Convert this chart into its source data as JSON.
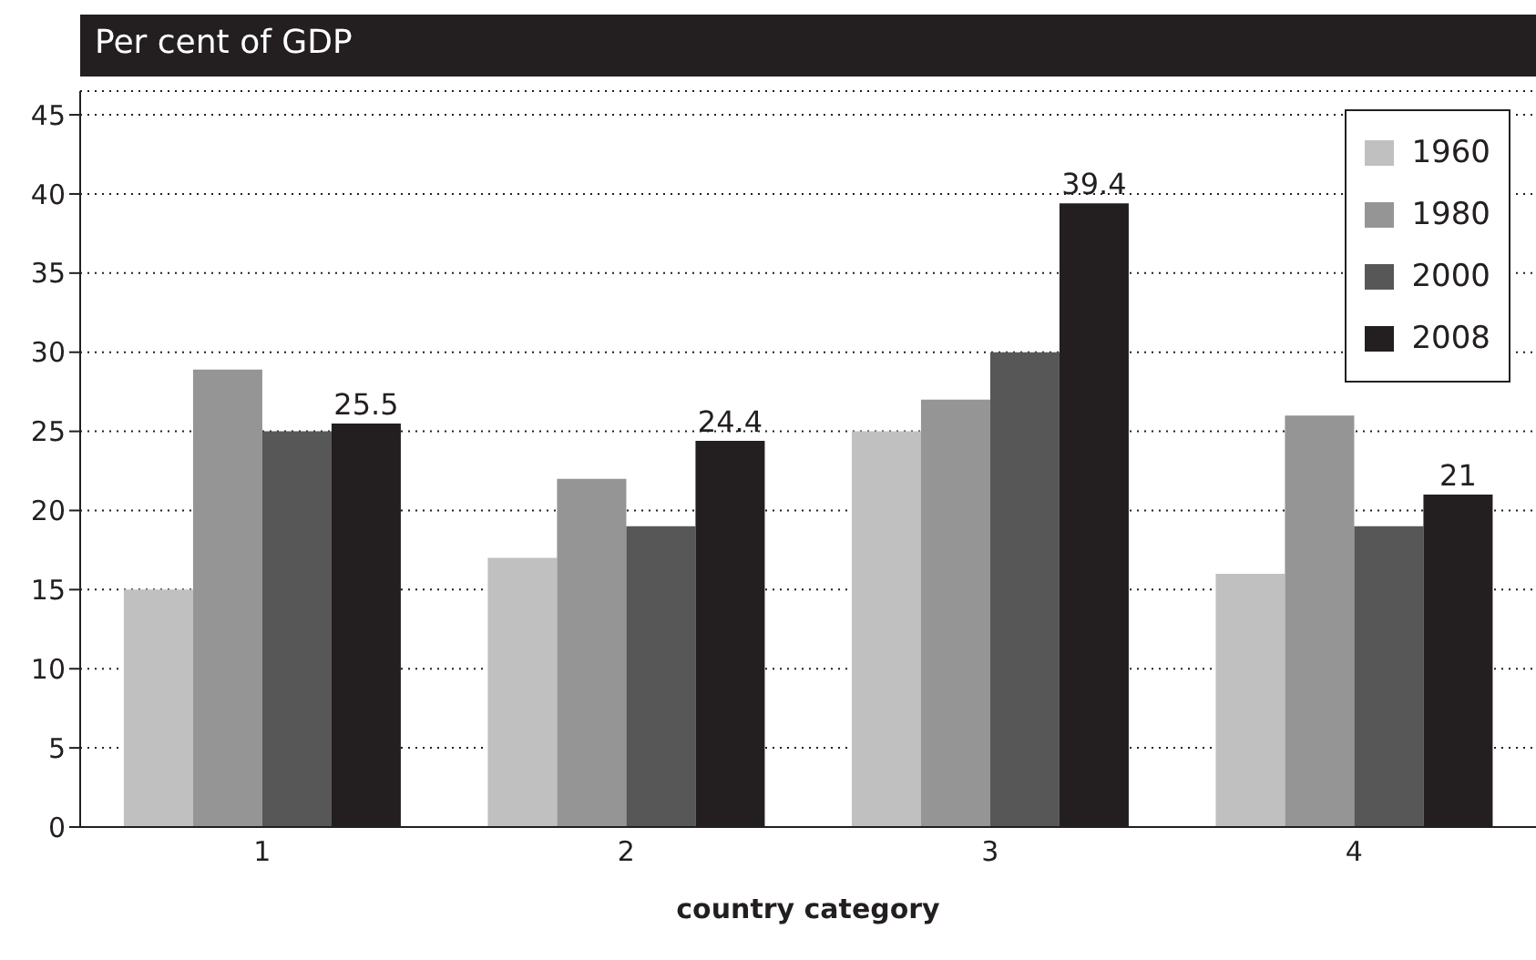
{
  "chart_data": {
    "type": "bar",
    "title": "Per cent of GDP",
    "xlabel": "country category",
    "categories": [
      "1",
      "2",
      "3",
      "4"
    ],
    "series": [
      {
        "name": "1960",
        "color": "#c1c0c1",
        "values": [
          15,
          17,
          25,
          16
        ]
      },
      {
        "name": "1980",
        "color": "#959595",
        "values": [
          28.9,
          22,
          27,
          26
        ]
      },
      {
        "name": "2000",
        "color": "#575757",
        "values": [
          25,
          19,
          30,
          19
        ]
      },
      {
        "name": "2008",
        "color": "#231f20",
        "values": [
          25.5,
          24.4,
          39.4,
          21
        ],
        "value_labels": [
          "25.5",
          "24.4",
          "39.4",
          "21"
        ]
      }
    ],
    "ylim": [
      0,
      46.5
    ],
    "yticks": [
      0,
      5,
      10,
      15,
      20,
      25,
      30,
      35,
      40,
      45
    ],
    "grid": "y",
    "legend": "top right"
  }
}
